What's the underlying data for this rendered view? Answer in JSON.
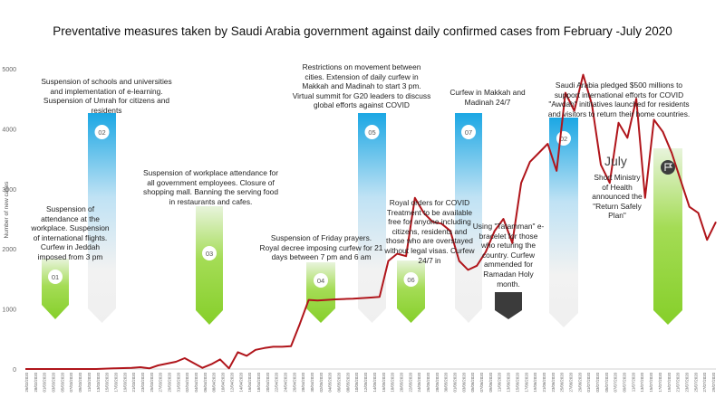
{
  "chart_data": {
    "type": "line",
    "title": "Preventative measures taken by Saudi Arabia government against daily confirmed cases from February -July 2020",
    "xlabel": "",
    "ylabel": "Number of new cases",
    "ylim": [
      0,
      5000
    ],
    "yticks": [
      0,
      1000,
      2000,
      3000,
      4000,
      5000
    ],
    "grid": false,
    "legend": "none",
    "line_color": "#b0151b",
    "x_tick_labels": [
      "26/02/2020",
      "28/02/2020",
      "01/03/2020",
      "03/03/2020",
      "05/03/2020",
      "07/03/2020",
      "09/03/2020",
      "11/03/2020",
      "13/03/2020",
      "15/03/2020",
      "17/03/2020",
      "19/03/2020",
      "21/03/2020",
      "23/03/2020",
      "25/03/2020",
      "27/03/2020",
      "29/03/2020",
      "31/03/2020",
      "02/04/2020",
      "04/04/2020",
      "06/04/2020",
      "08/04/2020",
      "10/04/2020",
      "12/04/2020",
      "14/04/2020",
      "16/04/2020",
      "18/04/2020",
      "20/04/2020",
      "22/04/2020",
      "24/04/2020",
      "26/04/2020",
      "28/04/2020",
      "30/04/2020",
      "02/05/2020",
      "04/05/2020",
      "06/05/2020",
      "08/05/2020",
      "10/05/2020",
      "12/05/2020",
      "14/05/2020",
      "16/05/2020",
      "18/05/2020",
      "20/05/2020",
      "22/05/2020",
      "24/05/2020",
      "26/05/2020",
      "28/05/2020",
      "30/05/2020",
      "01/06/2020",
      "03/06/2020",
      "05/06/2020",
      "07/06/2020",
      "09/06/2020",
      "11/06/2020",
      "13/06/2020",
      "15/06/2020",
      "17/06/2020",
      "19/06/2020",
      "21/06/2020",
      "23/06/2020",
      "25/06/2020",
      "27/06/2020",
      "29/06/2020",
      "01/07/2020",
      "03/07/2020",
      "05/07/2020",
      "07/07/2020",
      "09/07/2020",
      "11/07/2020",
      "13/07/2020",
      "15/07/2020",
      "17/07/2020",
      "19/07/2020",
      "21/07/2020",
      "23/07/2020",
      "25/07/2020",
      "27/07/2020",
      "29/07/2020"
    ],
    "x": [
      0,
      4,
      8,
      12,
      16,
      20,
      24,
      26,
      28,
      30,
      34,
      36,
      38,
      40,
      42,
      44,
      46,
      48,
      50,
      52,
      54,
      56,
      58,
      60,
      62,
      64,
      66,
      68,
      70,
      72,
      74,
      76,
      78,
      80,
      82,
      84,
      86,
      88,
      90,
      92,
      94,
      96,
      98,
      100,
      102,
      104,
      106,
      108,
      110,
      112,
      114,
      116,
      118,
      120,
      122,
      124,
      126,
      128,
      130,
      132,
      134,
      136,
      138,
      140,
      142,
      144,
      146,
      148,
      150,
      152,
      154,
      156
    ],
    "values": [
      0,
      0,
      0,
      0,
      0,
      10,
      20,
      30,
      10,
      60,
      120,
      180,
      100,
      20,
      80,
      160,
      10,
      280,
      220,
      320,
      350,
      370,
      370,
      380,
      750,
      1150,
      1140,
      1150,
      1160,
      1165,
      1170,
      1180,
      1190,
      1200,
      1800,
      1920,
      1880,
      2850,
      2600,
      2450,
      2420,
      2300,
      1800,
      1650,
      1720,
      1950,
      2300,
      2500,
      2100,
      3100,
      3450,
      3600,
      3750,
      3300,
      4600,
      4300,
      4900,
      4400,
      3400,
      3100,
      4100,
      3850,
      4500,
      2850,
      4150,
      3950,
      3600,
      3150,
      2700,
      2600,
      2150,
      2450
    ]
  },
  "annotations": [
    {
      "num": "01",
      "text": "Suspension of\nattendance at the\nworkplace. Suspension\nof international flights.\nCurfew in Jeddah\nimposed from 3 pm"
    },
    {
      "num": "02",
      "text": "Suspension of schools and universities\nand implementation of e-learning.\nSuspension of Umrah for citizens and\nresidents"
    },
    {
      "num": "03",
      "text": "Suspension of workplace attendance for\nall government employees. Closure of\nshopping mall. Banning the serving food\nin restaurants and cafes."
    },
    {
      "num": "04",
      "text": "Suspension of Friday prayers.\nRoyal decree imposing curfew for 21\ndays between 7 pm and 6 am"
    },
    {
      "num": "05",
      "text": "Restrictions on movement between\ncities. Extension of daily curfew in\nMakkah and Madinah to start 3 pm.\nVirtual summit for G20 leaders to discuss\nglobal efforts against COVID"
    },
    {
      "num": "06",
      "text": "Royal orders for COVID\nTreatment to be available\nfree for anyone including\ncitizens, residents and\nthose who are overstayed\nwithout legal visas. Curfew\n24/7 in"
    },
    {
      "num": "07",
      "text": "Curfew in Makkah and\nMadinah 24/7"
    },
    {
      "num": "",
      "text": "Using \"Tatamman\" e-\nbracelet for those\nwho returing the\ncountry. Curfew\nammended for\nRamadan Holy\nmonth."
    },
    {
      "num": "02",
      "text": "Saudi Arabia pledged $500 millions to\nsupport international efforts for COVID\n\"Awdah\" inititatives launched for residents\nand visitors to return their home countries."
    },
    {
      "num": "",
      "text": "Short Ministry\nof Health\nannounced the\n\"Return Safely\nPlan\""
    }
  ],
  "july_label": "July",
  "icons": {
    "dark_marker": "home-icon",
    "green_marker": "flag-icon"
  }
}
